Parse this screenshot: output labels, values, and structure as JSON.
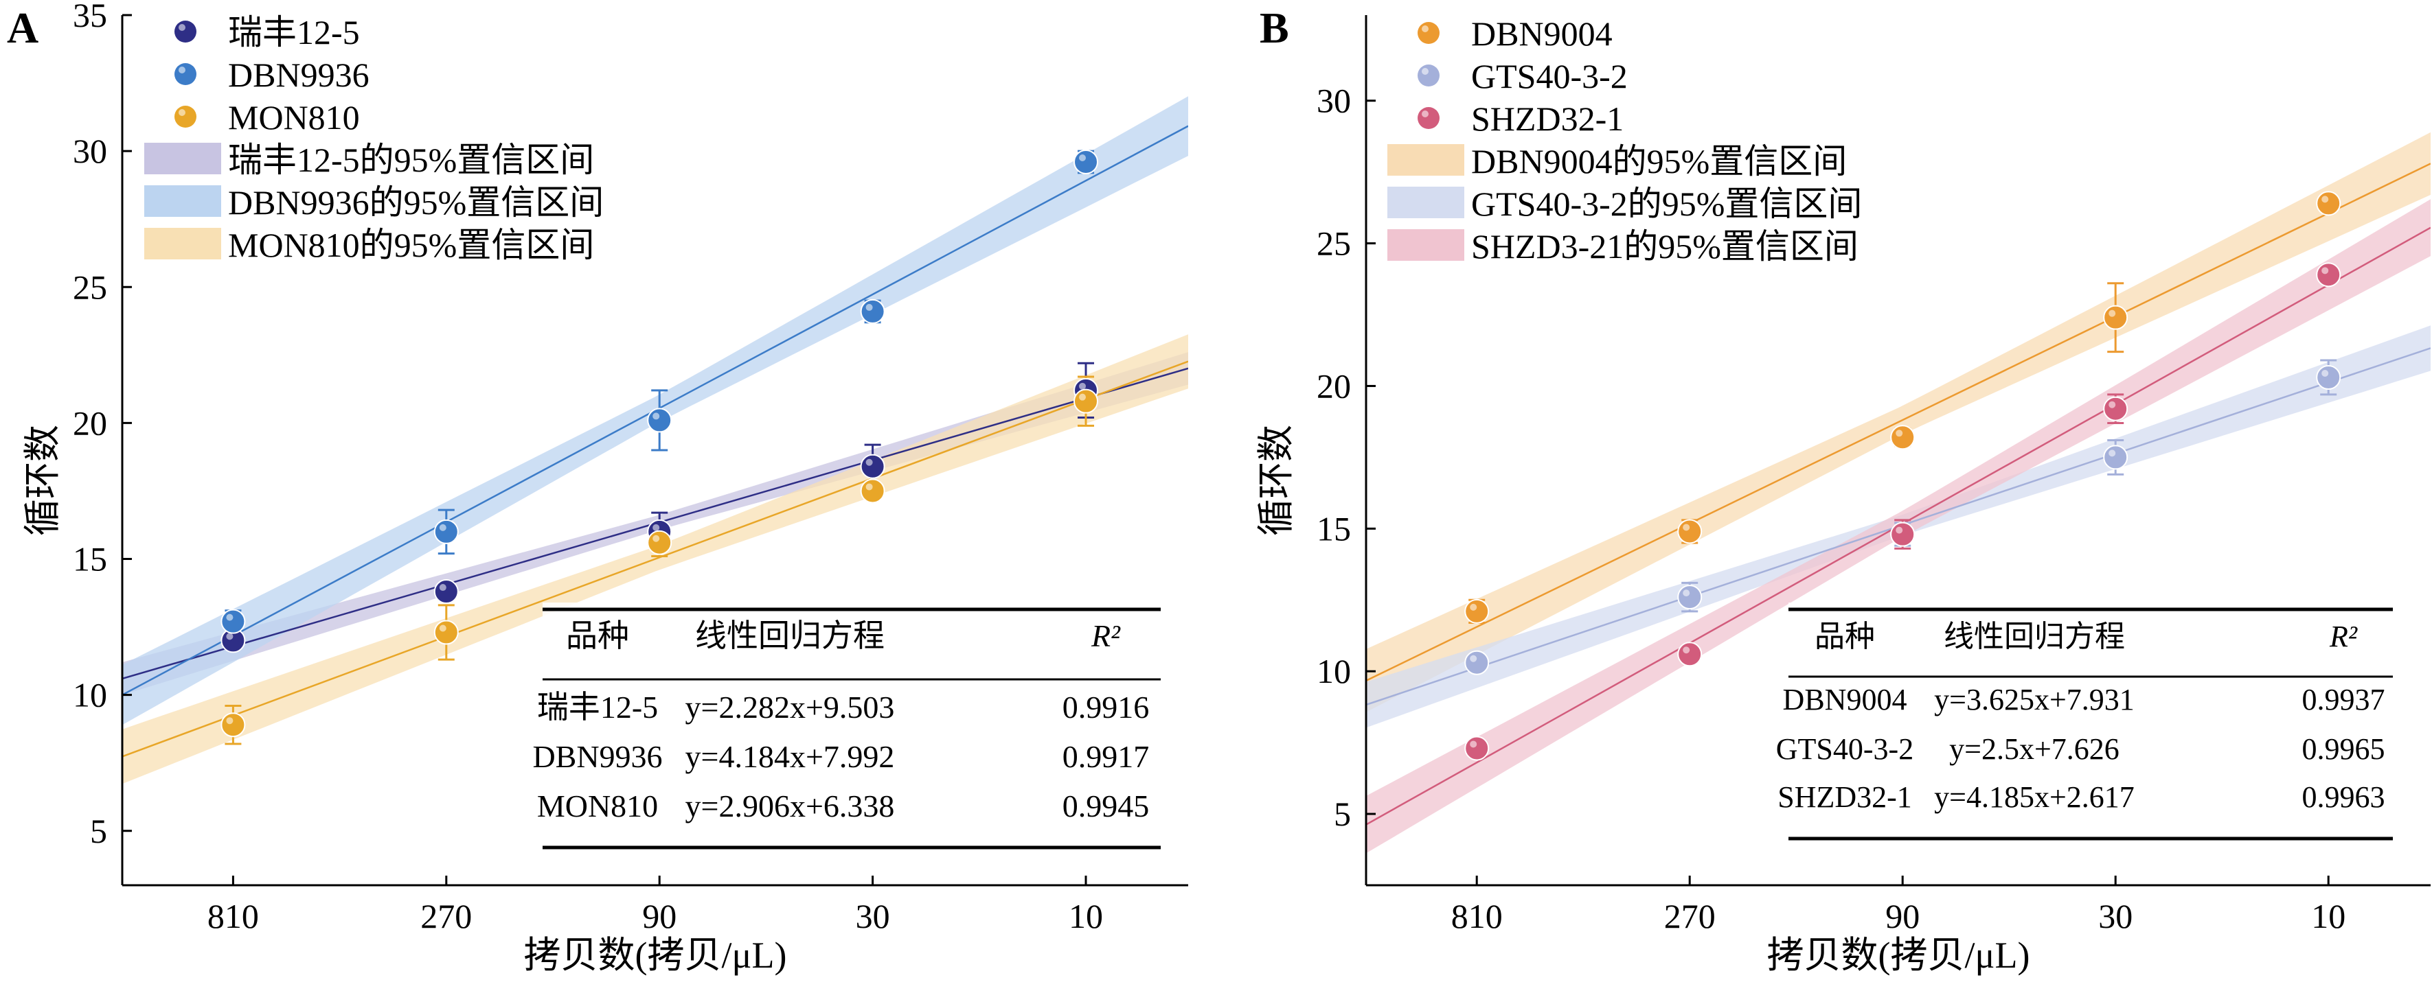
{
  "chart_data": [
    {
      "panel_label": "A",
      "type": "scatter",
      "xlabel": "拷贝数(拷贝/μL)",
      "ylabel": "循环数",
      "x_ticks": [
        "810",
        "270",
        "90",
        "30",
        "10"
      ],
      "y_ticks": [
        5,
        10,
        15,
        20,
        25,
        30,
        35
      ],
      "ylim": [
        3,
        35
      ],
      "x_positions": [
        1,
        2,
        3,
        4,
        5
      ],
      "grid": false,
      "legend_position": "top-left",
      "series": [
        {
          "name": "瑞丰12-5",
          "color": "#2e2e86",
          "values": [
            12.0,
            13.8,
            16.0,
            18.4,
            21.2
          ],
          "errors": [
            0.2,
            0.3,
            0.7,
            0.8,
            1.0
          ],
          "fit": {
            "slope": 2.282,
            "intercept": 9.503
          },
          "band": 0.6,
          "ci_label": "瑞丰12-5的95%置信区间",
          "ci_color": "#c8c4e2"
        },
        {
          "name": "DBN9936",
          "color": "#3c7cc8",
          "values": [
            12.7,
            16.0,
            20.1,
            24.1,
            29.6
          ],
          "errors": [
            0.4,
            0.8,
            1.1,
            0.4,
            0.4
          ],
          "fit": {
            "slope": 4.184,
            "intercept": 7.992
          },
          "band": 1.1,
          "ci_label": "DBN9936的95%置信区间",
          "ci_color": "#bcd4f0"
        },
        {
          "name": "MON810",
          "color": "#e8a628",
          "values": [
            8.9,
            12.3,
            15.6,
            17.5,
            20.8
          ],
          "errors": [
            0.7,
            1.0,
            0.5,
            0.3,
            0.9
          ],
          "fit": {
            "slope": 2.906,
            "intercept": 6.338
          },
          "band": 1.0,
          "ci_label": "MON810的95%置信区间",
          "ci_color": "#f8e0b4"
        }
      ],
      "table": {
        "headers": [
          "品种",
          "线性回归方程",
          "R²"
        ],
        "rows": [
          [
            "瑞丰12-5",
            "y=2.282x+9.503",
            "0.9916"
          ],
          [
            "DBN9936",
            "y=4.184x+7.992",
            "0.9917"
          ],
          [
            "MON810",
            "y=2.906x+6.338",
            "0.9945"
          ]
        ]
      }
    },
    {
      "panel_label": "B",
      "type": "scatter",
      "xlabel": "拷贝数(拷贝/μL)",
      "ylabel": "循环数",
      "x_ticks": [
        "810",
        "270",
        "90",
        "30",
        "10"
      ],
      "y_ticks": [
        5,
        10,
        15,
        20,
        25,
        30
      ],
      "ylim": [
        2.5,
        33
      ],
      "x_positions": [
        1,
        2,
        3,
        4,
        5
      ],
      "grid": false,
      "legend_position": "top-left",
      "series": [
        {
          "name": "DBN9004",
          "color": "#ec9a30",
          "values": [
            12.1,
            14.9,
            18.2,
            22.4,
            26.4
          ],
          "errors": [
            0.4,
            0.4,
            0.3,
            1.2,
            0.2
          ],
          "fit": {
            "slope": 3.625,
            "intercept": 7.931
          },
          "band": 1.1,
          "ci_label": "DBN9004的95%置信区间",
          "ci_color": "#f8dcb4"
        },
        {
          "name": "GTS40-3-2",
          "color": "#a4b0da",
          "values": [
            10.3,
            12.6,
            14.8,
            17.5,
            20.3
          ],
          "errors": [
            0.2,
            0.5,
            0.4,
            0.6,
            0.6
          ],
          "fit": {
            "slope": 2.5,
            "intercept": 7.626
          },
          "band": 0.8,
          "ci_label": "GTS40-3-2的95%置信区间",
          "ci_color": "#d4dcf0"
        },
        {
          "name": "SHZD32-1",
          "color": "#d25c7c",
          "values": [
            7.3,
            10.6,
            14.8,
            19.2,
            23.9
          ],
          "errors": [
            0.2,
            0.2,
            0.5,
            0.5,
            0.2
          ],
          "fit": {
            "slope": 4.185,
            "intercept": 2.617
          },
          "band": 1.0,
          "ci_label": "SHZD3-21的95%置信区间",
          "ci_color": "#f0c4d0"
        }
      ],
      "table": {
        "headers": [
          "品种",
          "线性回归方程",
          "R²"
        ],
        "rows": [
          [
            "DBN9004",
            "y=3.625x+7.931",
            "0.9937"
          ],
          [
            "GTS40-3-2",
            "y=2.5x+7.626",
            "0.9965"
          ],
          [
            "SHZD32-1",
            "y=4.185x+2.617",
            "0.9963"
          ]
        ]
      }
    }
  ]
}
